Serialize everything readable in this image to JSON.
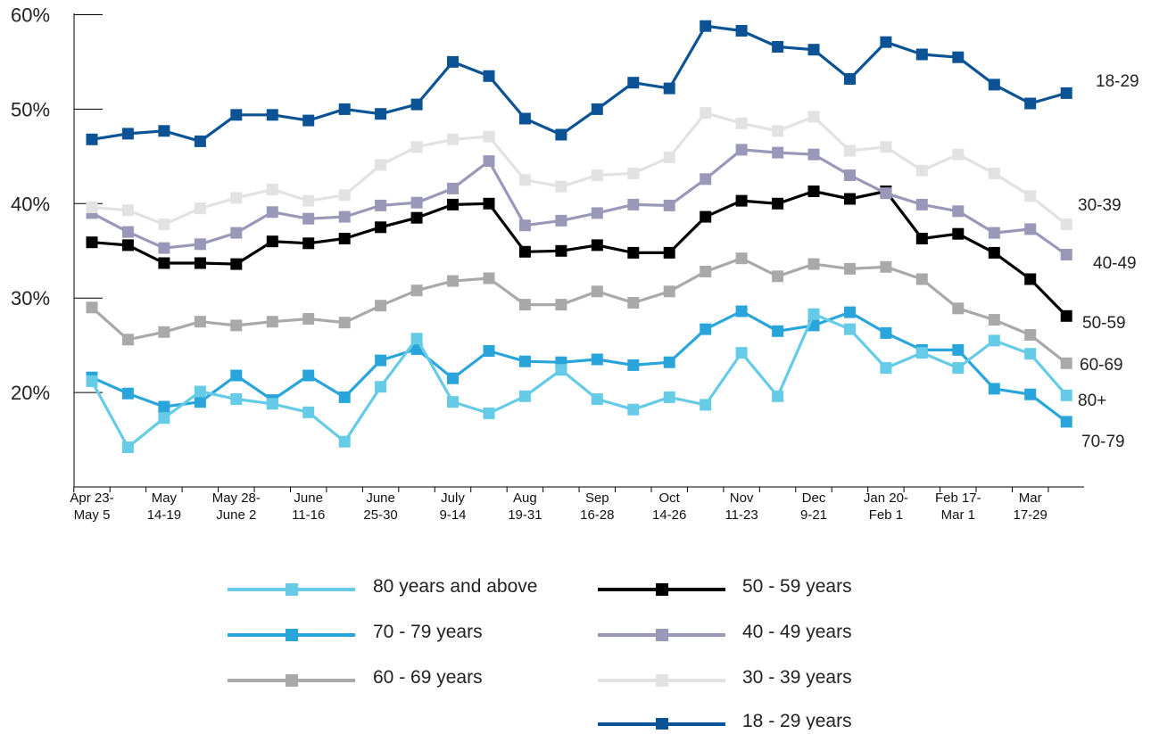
{
  "chart_data": {
    "type": "line",
    "title": "",
    "xlabel": "",
    "ylabel": "",
    "ylim": [
      10,
      60
    ],
    "y_ticks": [
      20,
      30,
      40,
      50,
      60
    ],
    "y_tick_labels": [
      "20%",
      "30%",
      "40%",
      "50%",
      "60%"
    ],
    "grid": false,
    "legend_position": "bottom",
    "x_tick_labels": [
      {
        "line1": "Apr 23-",
        "line2": "May 5"
      },
      {
        "line1": "May",
        "line2": "14-19"
      },
      {
        "line1": "May 28-",
        "line2": "June 2"
      },
      {
        "line1": "June",
        "line2": "11-16"
      },
      {
        "line1": "June",
        "line2": "25-30"
      },
      {
        "line1": "July",
        "line2": "9-14"
      },
      {
        "line1": "Aug",
        "line2": "19-31"
      },
      {
        "line1": "Sep",
        "line2": "16-28"
      },
      {
        "line1": "Oct",
        "line2": "14-26"
      },
      {
        "line1": "Nov",
        "line2": "11-23"
      },
      {
        "line1": "Dec",
        "line2": "9-21"
      },
      {
        "line1": "Jan 20-",
        "line2": "Feb 1"
      },
      {
        "line1": "Feb 17-",
        "line2": "Mar 1"
      },
      {
        "line1": "Mar",
        "line2": "17-29"
      }
    ],
    "label_every": 2,
    "series": [
      {
        "name": "18 - 29 years",
        "end_label": "18-29",
        "color": "#0b5394",
        "values": [
          46.8,
          47.4,
          47.7,
          46.6,
          49.4,
          49.4,
          48.8,
          50.0,
          49.5,
          50.5,
          55.0,
          53.5,
          49.0,
          47.3,
          50.0,
          52.8,
          52.2,
          58.8,
          58.3,
          56.6,
          56.3,
          53.2,
          57.1,
          55.8,
          55.5,
          52.6,
          50.6,
          51.7
        ]
      },
      {
        "name": "30 - 39 years",
        "end_label": "30-39",
        "color": "#e2e2e2",
        "values": [
          39.6,
          39.3,
          37.8,
          39.5,
          40.6,
          41.5,
          40.3,
          40.9,
          44.1,
          46.0,
          46.8,
          47.1,
          42.5,
          41.8,
          43.0,
          43.2,
          44.9,
          49.6,
          48.5,
          47.7,
          49.2,
          45.6,
          46.0,
          43.5,
          45.2,
          43.2,
          40.8,
          37.8
        ]
      },
      {
        "name": "40 - 49 years",
        "end_label": "40-49",
        "color": "#9a98b9",
        "values": [
          39.0,
          37.0,
          35.3,
          35.7,
          36.9,
          39.1,
          38.4,
          38.6,
          39.8,
          40.1,
          41.6,
          44.5,
          37.7,
          38.2,
          39.0,
          39.9,
          39.8,
          42.6,
          45.7,
          45.4,
          45.2,
          43.0,
          41.1,
          39.9,
          39.2,
          36.9,
          37.3,
          34.6
        ]
      },
      {
        "name": "50 - 59 years",
        "end_label": "50-59",
        "color": "#000000",
        "values": [
          35.9,
          35.6,
          33.7,
          33.7,
          33.6,
          36.0,
          35.8,
          36.3,
          37.5,
          38.5,
          39.9,
          40.0,
          34.9,
          35.0,
          35.6,
          34.8,
          34.8,
          38.6,
          40.3,
          40.0,
          41.3,
          40.5,
          41.3,
          36.3,
          36.8,
          34.8,
          32.0,
          28.1
        ]
      },
      {
        "name": "60 - 69 years",
        "end_label": "60-69",
        "color": "#a9a9a9",
        "values": [
          29.0,
          25.6,
          26.4,
          27.5,
          27.1,
          27.5,
          27.8,
          27.4,
          29.2,
          30.8,
          31.8,
          32.1,
          29.3,
          29.3,
          30.7,
          29.5,
          30.7,
          32.8,
          34.2,
          32.3,
          33.6,
          33.1,
          33.3,
          32.0,
          28.9,
          27.7,
          26.1,
          23.1
        ]
      },
      {
        "name": "70 - 79 years",
        "end_label": "70-79",
        "color": "#29a5dc",
        "values": [
          21.6,
          19.9,
          18.5,
          19.0,
          21.8,
          19.2,
          21.8,
          19.5,
          23.4,
          24.6,
          21.5,
          24.4,
          23.3,
          23.2,
          23.5,
          22.9,
          23.2,
          26.7,
          28.6,
          26.5,
          27.1,
          28.5,
          26.3,
          24.5,
          24.5,
          20.4,
          19.8,
          16.9
        ]
      },
      {
        "name": "80 years and above",
        "end_label": "80+",
        "color": "#65cbe7",
        "values": [
          21.2,
          14.2,
          17.3,
          20.1,
          19.3,
          18.8,
          17.9,
          14.8,
          20.6,
          25.7,
          19.0,
          17.8,
          19.6,
          22.4,
          19.3,
          18.2,
          19.5,
          18.7,
          24.2,
          19.6,
          28.3,
          26.7,
          22.6,
          24.2,
          22.6,
          25.5,
          24.1,
          19.7
        ]
      }
    ],
    "legend_layout": [
      {
        "series": 6,
        "col": 0,
        "row": 0
      },
      {
        "series": 5,
        "col": 0,
        "row": 1
      },
      {
        "series": 4,
        "col": 0,
        "row": 2
      },
      {
        "series": 3,
        "col": 1,
        "row": 0
      },
      {
        "series": 2,
        "col": 1,
        "row": 1
      },
      {
        "series": 1,
        "col": 1,
        "row": 2
      },
      {
        "series": 0,
        "col": 1,
        "row": 3
      }
    ]
  }
}
